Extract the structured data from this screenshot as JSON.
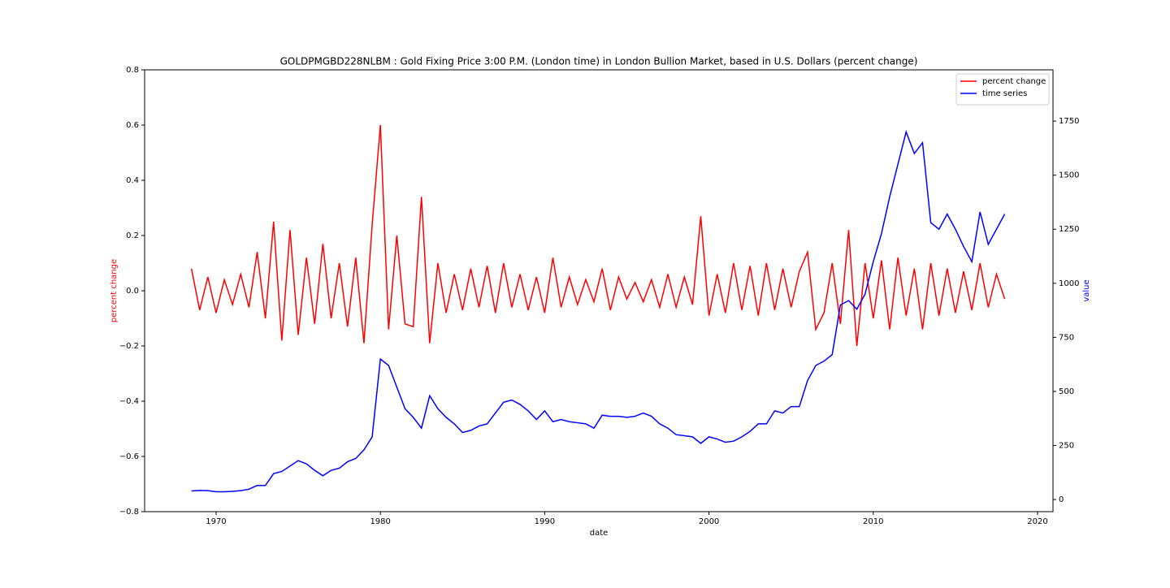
{
  "chart_data": {
    "type": "line",
    "title": "GOLDPMGBD228NLBM :  Gold Fixing Price 3:00 P.M. (London time) in London Bullion Market, based in U.S. Dollars (percent change)",
    "xlabel": "date",
    "ylabel": "percent change",
    "y2label": "value",
    "ylabel_color": "#ff0000",
    "y2label_color": "#0000ff",
    "x": [
      1968.5,
      1969,
      1969.5,
      1970,
      1970.5,
      1971,
      1971.5,
      1972,
      1972.5,
      1973,
      1973.5,
      1974,
      1974.5,
      1975,
      1975.5,
      1976,
      1976.5,
      1977,
      1977.5,
      1978,
      1978.5,
      1979,
      1979.5,
      1980,
      1980.5,
      1981,
      1981.5,
      1982,
      1982.5,
      1983,
      1983.5,
      1984,
      1984.5,
      1985,
      1985.5,
      1986,
      1986.5,
      1987,
      1987.5,
      1988,
      1988.5,
      1989,
      1989.5,
      1990,
      1990.5,
      1991,
      1991.5,
      1992,
      1992.5,
      1993,
      1993.5,
      1994,
      1994.5,
      1995,
      1995.5,
      1996,
      1996.5,
      1997,
      1997.5,
      1998,
      1998.5,
      1999,
      1999.5,
      2000,
      2000.5,
      2001,
      2001.5,
      2002,
      2002.5,
      2003,
      2003.5,
      2004,
      2004.5,
      2005,
      2005.5,
      2006,
      2006.5,
      2007,
      2007.5,
      2008,
      2008.5,
      2009,
      2009.5,
      2010,
      2010.5,
      2011,
      2011.5,
      2012,
      2012.5,
      2013,
      2013.5,
      2014,
      2014.5,
      2015,
      2015.5,
      2016,
      2016.5,
      2017,
      2017.5,
      2018
    ],
    "series": [
      {
        "name": "percent change",
        "color": "#ff0000",
        "axis": "y",
        "values": [
          0.08,
          -0.07,
          0.05,
          -0.08,
          0.04,
          -0.05,
          0.06,
          -0.06,
          0.14,
          -0.1,
          0.25,
          -0.18,
          0.22,
          -0.16,
          0.12,
          -0.12,
          0.17,
          -0.1,
          0.1,
          -0.13,
          0.12,
          -0.19,
          0.24,
          0.6,
          -0.14,
          0.2,
          -0.12,
          -0.13,
          0.34,
          -0.19,
          0.1,
          -0.08,
          0.06,
          -0.07,
          0.08,
          -0.06,
          0.09,
          -0.08,
          0.1,
          -0.06,
          0.06,
          -0.07,
          0.05,
          -0.08,
          0.12,
          -0.06,
          0.05,
          -0.05,
          0.04,
          -0.04,
          0.08,
          -0.07,
          0.05,
          -0.03,
          0.03,
          -0.04,
          0.04,
          -0.06,
          0.06,
          -0.06,
          0.05,
          -0.05,
          0.27,
          -0.09,
          0.06,
          -0.08,
          0.1,
          -0.07,
          0.09,
          -0.09,
          0.1,
          -0.07,
          0.08,
          -0.06,
          0.07,
          0.14,
          -0.14,
          -0.08,
          0.1,
          -0.12,
          0.22,
          -0.2,
          0.1,
          -0.1,
          0.11,
          -0.14,
          0.12,
          -0.09,
          0.08,
          -0.14,
          0.1,
          -0.09,
          0.08,
          -0.08,
          0.07,
          -0.07,
          0.1,
          -0.06,
          0.06,
          -0.03
        ]
      },
      {
        "name": "time series",
        "color": "#0000ff",
        "axis": "y2",
        "values": [
          40,
          42,
          41,
          36,
          36,
          38,
          41,
          48,
          65,
          65,
          120,
          130,
          155,
          180,
          165,
          135,
          110,
          135,
          145,
          175,
          190,
          230,
          290,
          650,
          620,
          520,
          420,
          380,
          330,
          480,
          420,
          380,
          350,
          310,
          320,
          340,
          350,
          400,
          450,
          460,
          440,
          410,
          370,
          410,
          360,
          370,
          360,
          355,
          350,
          330,
          390,
          385,
          385,
          380,
          385,
          400,
          385,
          350,
          330,
          300,
          295,
          290,
          260,
          290,
          280,
          265,
          270,
          290,
          315,
          350,
          350,
          410,
          400,
          430,
          430,
          550,
          620,
          640,
          670,
          900,
          920,
          880,
          950,
          1100,
          1230,
          1400,
          1550,
          1700,
          1600,
          1650,
          1280,
          1250,
          1320,
          1250,
          1170,
          1100,
          1330,
          1180,
          1250,
          1320
        ]
      }
    ],
    "xlim": [
      1965.65,
      2020.94
    ],
    "xticks": [
      1970,
      1980,
      1990,
      2000,
      2010,
      2020
    ],
    "ylim": [
      -0.8,
      0.8
    ],
    "yticks": [
      {
        "value": -0.8,
        "label": "−0.8"
      },
      {
        "value": -0.6,
        "label": "−0.6"
      },
      {
        "value": -0.4,
        "label": "−0.4"
      },
      {
        "value": -0.2,
        "label": "−0.2"
      },
      {
        "value": 0,
        "label": "0.0"
      },
      0.2,
      0.4,
      0.6,
      0.8
    ],
    "y2lim": [
      -56,
      1987
    ],
    "y2ticks": [
      0,
      250,
      500,
      750,
      1000,
      1250,
      1500,
      1750
    ],
    "legend": "upper right"
  }
}
